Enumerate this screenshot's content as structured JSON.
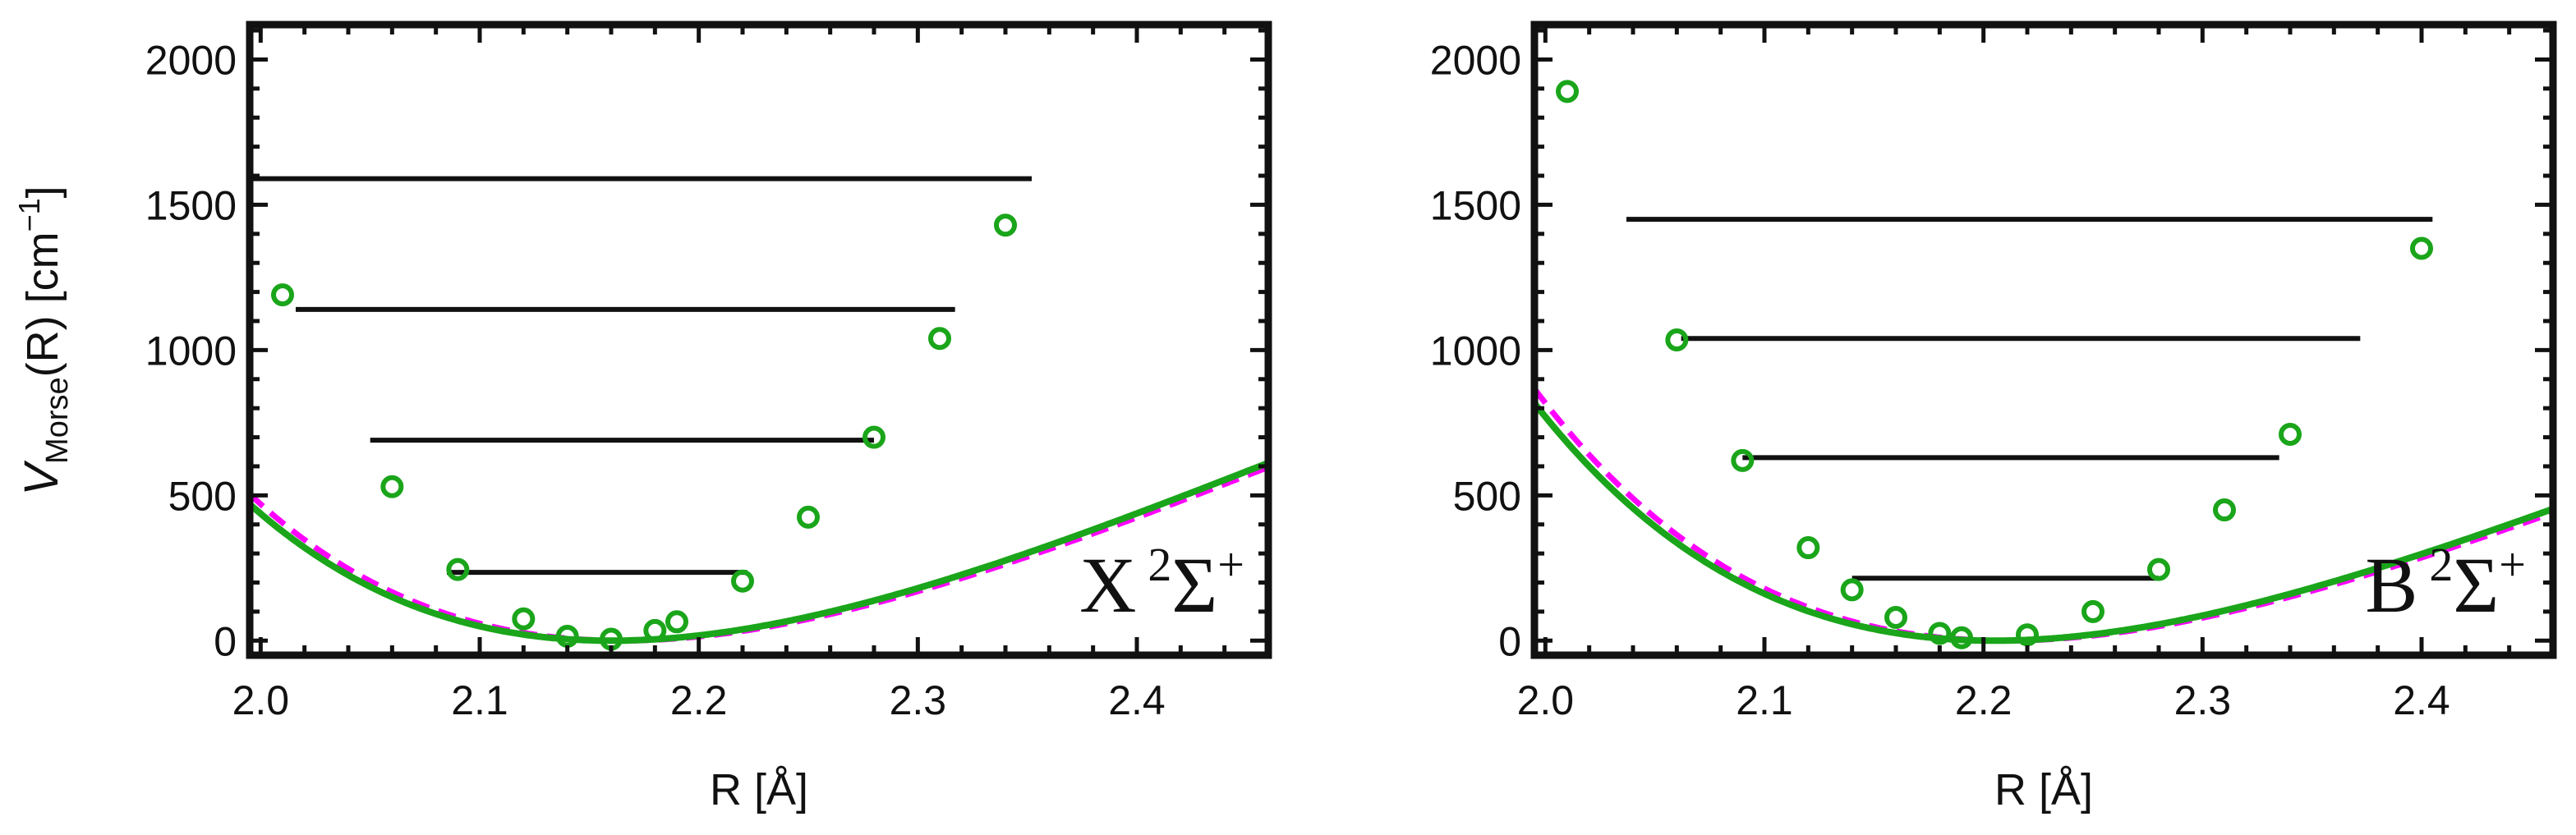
{
  "colors": {
    "fit_curve": "#1aa51a",
    "reference_curve": "#ff00ff",
    "levels": "#111111",
    "points": "#1aa51a",
    "frame": "#111111"
  },
  "ylabel": {
    "main": "V",
    "sub": "Morse",
    "rest": "(R) [cm",
    "sup": "−1",
    "close": "]"
  },
  "chart_data": [
    {
      "type": "line",
      "xlabel": "R [Å]",
      "xlim": [
        1.995,
        2.46
      ],
      "ylim": [
        -50,
        2120
      ],
      "xticks": [
        "2.0",
        "2.1",
        "2.2",
        "2.3",
        "2.4"
      ],
      "yticks": [
        "0",
        "500",
        "1000",
        "1500",
        "2000"
      ],
      "state_label": {
        "letter": "X",
        "sup_left": "2",
        "symbol": "Σ",
        "sup_right": "+"
      },
      "fit_curve": {
        "De": 2900,
        "a": 2.05,
        "Re": 2.16
      },
      "reference_curve": {
        "De": 2900,
        "a": 2.05,
        "Re": 2.165
      },
      "points": [
        {
          "x": 2.01,
          "y": 1190
        },
        {
          "x": 2.06,
          "y": 530
        },
        {
          "x": 2.09,
          "y": 245
        },
        {
          "x": 2.12,
          "y": 75
        },
        {
          "x": 2.14,
          "y": 15
        },
        {
          "x": 2.16,
          "y": 5
        },
        {
          "x": 2.18,
          "y": 35
        },
        {
          "x": 2.19,
          "y": 65
        },
        {
          "x": 2.22,
          "y": 205
        },
        {
          "x": 2.25,
          "y": 425
        },
        {
          "x": 2.28,
          "y": 700
        },
        {
          "x": 2.31,
          "y": 1040
        },
        {
          "x": 2.34,
          "y": 1430
        }
      ],
      "levels": [
        {
          "y": 235,
          "x1": 2.085,
          "x2": 2.222
        },
        {
          "y": 690,
          "x1": 2.05,
          "x2": 2.28
        },
        {
          "y": 1140,
          "x1": 2.016,
          "x2": 2.317
        },
        {
          "y": 1590,
          "x1": 1.995,
          "x2": 2.352
        }
      ]
    },
    {
      "type": "line",
      "xlabel": "R [Å]",
      "xlim": [
        1.995,
        2.46
      ],
      "ylim": [
        -50,
        2120
      ],
      "xticks": [
        "2.0",
        "2.1",
        "2.2",
        "2.3",
        "2.4"
      ],
      "yticks": [
        "0",
        "500",
        "1000",
        "1500",
        "2000"
      ],
      "state_label": {
        "letter": "B",
        "sup_left": "2",
        "symbol": "Σ",
        "sup_right": "+"
      },
      "fit_curve": {
        "De": 2600,
        "a": 2.12,
        "Re": 2.205
      },
      "reference_curve": {
        "De": 2600,
        "a": 2.12,
        "Re": 2.21
      },
      "points": [
        {
          "x": 2.01,
          "y": 1890
        },
        {
          "x": 2.06,
          "y": 1035
        },
        {
          "x": 2.09,
          "y": 620
        },
        {
          "x": 2.12,
          "y": 320
        },
        {
          "x": 2.14,
          "y": 175
        },
        {
          "x": 2.16,
          "y": 80
        },
        {
          "x": 2.18,
          "y": 25
        },
        {
          "x": 2.19,
          "y": 10
        },
        {
          "x": 2.22,
          "y": 20
        },
        {
          "x": 2.25,
          "y": 100
        },
        {
          "x": 2.28,
          "y": 245
        },
        {
          "x": 2.31,
          "y": 450
        },
        {
          "x": 2.34,
          "y": 710
        },
        {
          "x": 2.4,
          "y": 1350
        }
      ],
      "levels": [
        {
          "y": 215,
          "x1": 2.14,
          "x2": 2.28
        },
        {
          "y": 630,
          "x1": 2.09,
          "x2": 2.335
        },
        {
          "y": 1040,
          "x1": 2.062,
          "x2": 2.372
        },
        {
          "y": 1450,
          "x1": 2.037,
          "x2": 2.405
        }
      ]
    }
  ]
}
